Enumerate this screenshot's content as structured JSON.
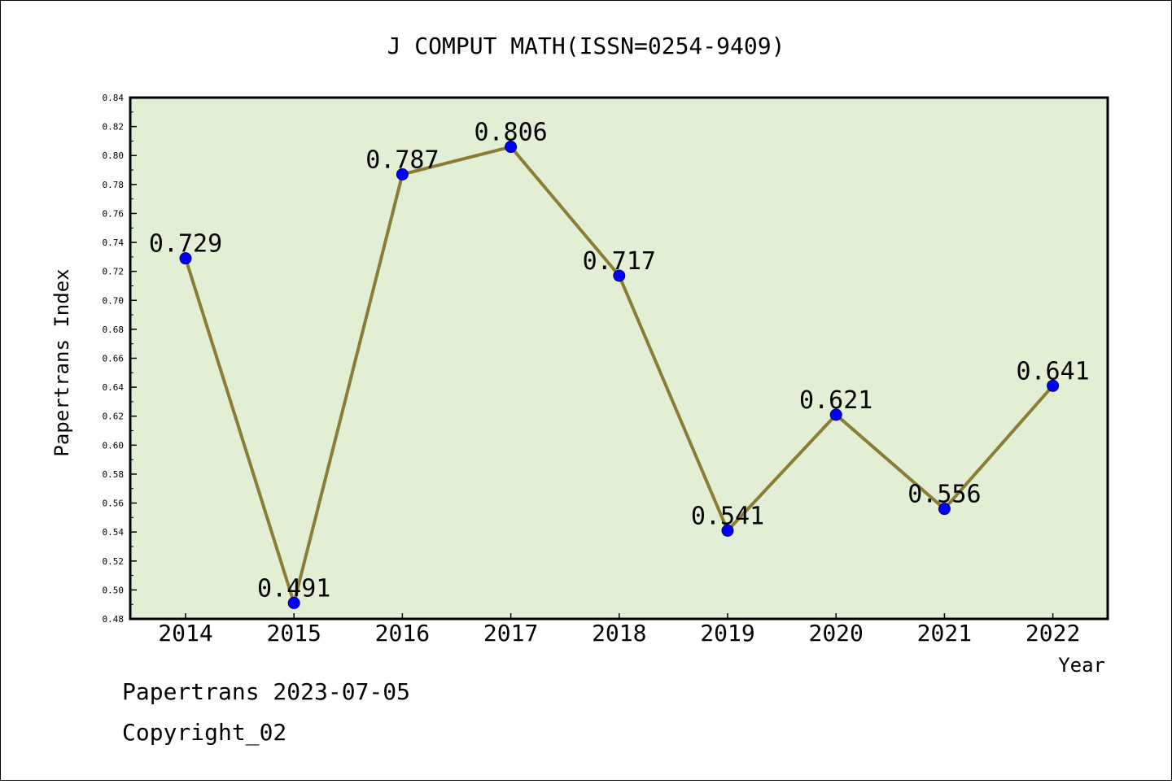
{
  "footer": {
    "date_line": "Papertrans 2023-07-05",
    "copyright_line": "Copyright_02"
  },
  "colors": {
    "plot_background": "#e2efd5",
    "line": "#8b7d35",
    "marker": "#0000ff",
    "frame": "#000000"
  },
  "chart_data": {
    "type": "line",
    "title": "J COMPUT MATH(ISSN=0254-9409)",
    "xlabel": "Year",
    "ylabel": "Papertrans Index",
    "categories": [
      "2014",
      "2015",
      "2016",
      "2017",
      "2018",
      "2019",
      "2020",
      "2021",
      "2022"
    ],
    "series": [
      {
        "values": [
          0.729,
          0.491,
          0.787,
          0.806,
          0.717,
          0.541,
          0.621,
          0.556,
          0.641
        ],
        "data_labels": [
          "0.729",
          "0.491",
          "0.787",
          "0.806",
          "0.717",
          "0.541",
          "0.621",
          "0.556",
          "0.641"
        ]
      }
    ],
    "ylim": [
      0.48,
      0.84
    ],
    "yticks": [
      "0.48",
      "0.50",
      "0.52",
      "0.54",
      "0.56",
      "0.58",
      "0.60",
      "0.62",
      "0.64",
      "0.66",
      "0.68",
      "0.70",
      "0.72",
      "0.74",
      "0.76",
      "0.78",
      "0.80",
      "0.82",
      "0.84"
    ],
    "grid": false,
    "legend": "none"
  }
}
